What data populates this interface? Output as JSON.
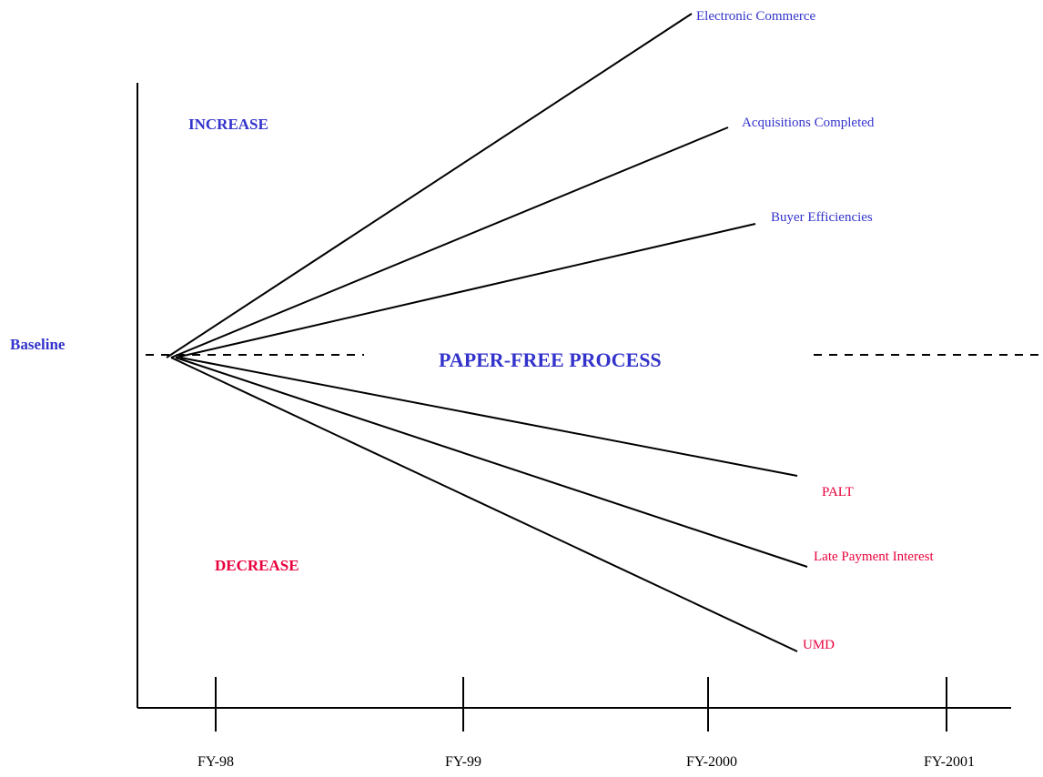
{
  "diagram": {
    "title": "PAPER-FREE PROCESS",
    "baseline_label": "Baseline",
    "increase_label": "INCREASE",
    "decrease_label": "DECREASE",
    "fiscal_years": [
      "FY-98",
      "FY-99",
      "FY-2000",
      "FY-2001"
    ],
    "increasing_measures": [
      "Electronic Commerce",
      "Acquisitions Completed",
      "Buyer Efficiencies"
    ],
    "decreasing_measures": [
      "PALT",
      "Late Payment Interest",
      "UMD"
    ]
  },
  "colors": {
    "increase": "#3333cc",
    "decrease": "#e8003c",
    "axis": "#000000",
    "trend_line": "#000000"
  }
}
